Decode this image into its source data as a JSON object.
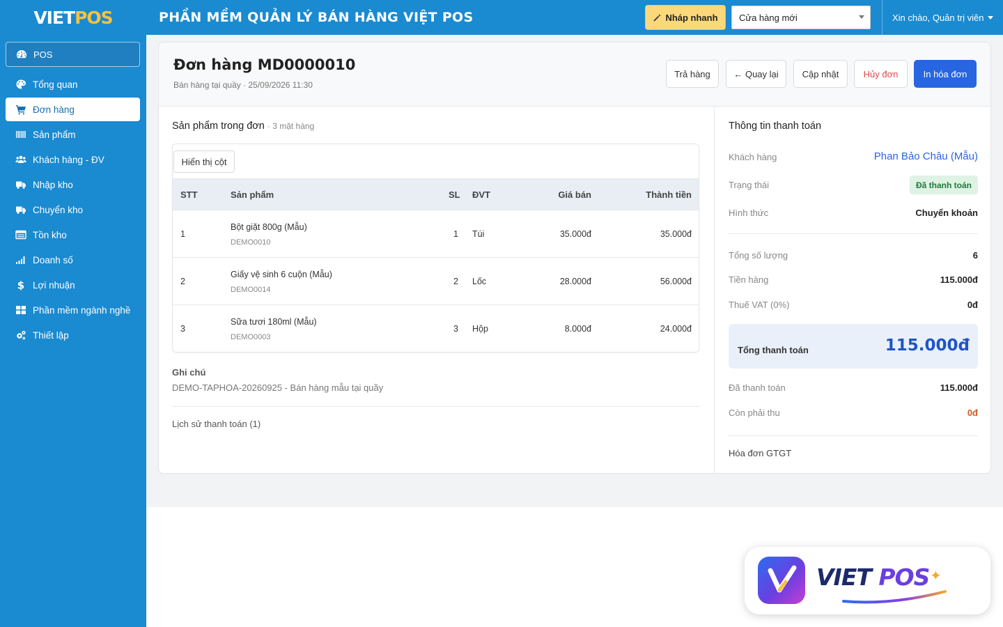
{
  "topbar": {
    "logo_viet": "VIET",
    "logo_pos": "POS",
    "app_title": "PHẦN MỀM QUẢN LÝ BÁN HÀNG VIỆT POS",
    "quick_button": "Nháp nhanh",
    "store_select": "Cửa hàng mới",
    "user_greeting": "Xin chào, Quản trị viên"
  },
  "sidebar": {
    "pos_label": "POS",
    "items": [
      {
        "label": "Tổng quan",
        "icon": "palette-icon"
      },
      {
        "label": "Đơn hàng",
        "icon": "cart-icon",
        "active": true
      },
      {
        "label": "Sản phẩm",
        "icon": "barcode-icon"
      },
      {
        "label": "Khách hàng - ĐV",
        "icon": "users-icon"
      },
      {
        "label": "Nhập kho",
        "icon": "truck-icon"
      },
      {
        "label": "Chuyển kho",
        "icon": "truck-icon"
      },
      {
        "label": "Tồn kho",
        "icon": "list-icon"
      },
      {
        "label": "Doanh số",
        "icon": "signal-icon"
      },
      {
        "label": "Lợi nhuận",
        "icon": "dollar-icon"
      },
      {
        "label": "Phần mềm ngành nghề",
        "icon": "grid-icon"
      },
      {
        "label": "Thiết lập",
        "icon": "gears-icon"
      }
    ]
  },
  "order": {
    "title": "Đơn hàng MD0000010",
    "subtitle": "Bán hàng tại quầy · 25/09/2026 11:30",
    "actions": {
      "return": "Trả hàng",
      "back": "← Quay lại",
      "update": "Cập nhật",
      "cancel": "Hủy đơn",
      "print": "In hóa đơn"
    }
  },
  "products": {
    "section_title": "Sản phẩm trong đơn",
    "count_label": "· 3 mặt hàng",
    "columns_button": "Hiển thị cột",
    "headers": {
      "stt": "STT",
      "product": "Sản phẩm",
      "qty": "SL",
      "unit": "ĐVT",
      "price": "Giá bán",
      "total": "Thành tiền"
    },
    "rows": [
      {
        "stt": "1",
        "name": "Bột giặt 800g (Mẫu)",
        "code": "DEMO0010",
        "qty": "1",
        "unit": "Túi",
        "price": "35.000đ",
        "total": "35.000đ"
      },
      {
        "stt": "2",
        "name": "Giấy vệ sinh 6 cuộn (Mẫu)",
        "code": "DEMO0014",
        "qty": "2",
        "unit": "Lốc",
        "price": "28.000đ",
        "total": "56.000đ"
      },
      {
        "stt": "3",
        "name": "Sữa tươi 180ml (Mẫu)",
        "code": "DEMO0003",
        "qty": "3",
        "unit": "Hộp",
        "price": "8.000đ",
        "total": "24.000đ"
      }
    ]
  },
  "notes": {
    "label": "Ghi chú",
    "text": "DEMO-TAPHOA-20260925 - Bán hàng mẫu tại quầy",
    "history": "Lịch sử thanh toán (1)"
  },
  "payment": {
    "title": "Thông tin thanh toán",
    "customer_label": "Khách hàng",
    "customer_value": "Phan Bảo Châu (Mẫu)",
    "status_label": "Trạng thái",
    "status_value": "Đã thanh toán",
    "method_label": "Hình thức",
    "method_value": "Chuyển khoản",
    "qty_label": "Tổng số lượng",
    "qty_value": "6",
    "subtotal_label": "Tiền hàng",
    "subtotal_value": "115.000đ",
    "vat_label": "Thuế VAT (0%)",
    "vat_value": "0đ",
    "grand_total_label": "Tổng thanh toán",
    "grand_total_value": "115.000đ",
    "paid_label": "Đã thanh toán",
    "paid_value": "115.000đ",
    "remaining_label": "Còn phải thu",
    "remaining_value": "0đ",
    "vat_invoice": "Hóa đơn GTGT"
  },
  "brand": {
    "viet": "VIET",
    "pos": "POS"
  }
}
